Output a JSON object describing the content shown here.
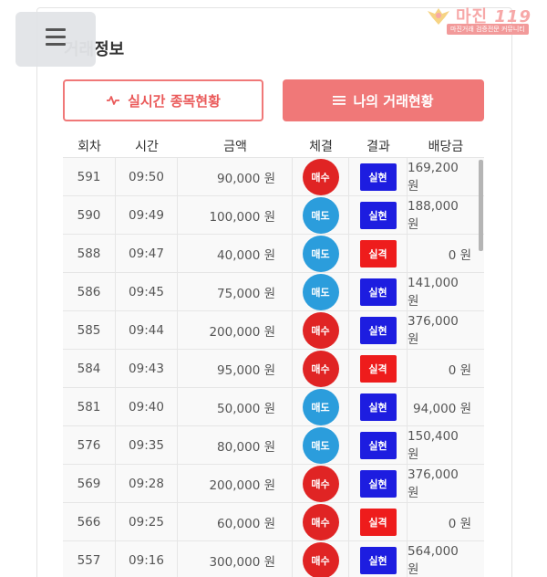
{
  "logo": {
    "brand": "마진",
    "brand_num": "119",
    "tagline": "마진거래 검증전문 커뮤니티"
  },
  "menu": {
    "icon": "hamburger-menu-icon"
  },
  "page": {
    "title_part1": "거래",
    "title_part2": "정보"
  },
  "tabs": {
    "live": {
      "label": "실시간 종목현황",
      "icon": "pulse-icon"
    },
    "mine": {
      "label": "나의 거래현황",
      "icon": "list-icon"
    }
  },
  "table": {
    "columns": [
      "회차",
      "시간",
      "금액",
      "체결",
      "결과",
      "배당금"
    ],
    "rows": [
      {
        "round": "591",
        "time": "09:50",
        "amount": "90,000 원",
        "trade": "매수",
        "trade_type": "buy",
        "result": "실현",
        "result_type": "win",
        "payout": "169,200 원"
      },
      {
        "round": "590",
        "time": "09:49",
        "amount": "100,000 원",
        "trade": "매도",
        "trade_type": "sell",
        "result": "실현",
        "result_type": "win",
        "payout": "188,000 원"
      },
      {
        "round": "588",
        "time": "09:47",
        "amount": "40,000 원",
        "trade": "매도",
        "trade_type": "sell",
        "result": "실격",
        "result_type": "lose",
        "payout": "0 원"
      },
      {
        "round": "586",
        "time": "09:45",
        "amount": "75,000 원",
        "trade": "매도",
        "trade_type": "sell",
        "result": "실현",
        "result_type": "win",
        "payout": "141,000 원"
      },
      {
        "round": "585",
        "time": "09:44",
        "amount": "200,000 원",
        "trade": "매수",
        "trade_type": "buy",
        "result": "실현",
        "result_type": "win",
        "payout": "376,000 원"
      },
      {
        "round": "584",
        "time": "09:43",
        "amount": "95,000 원",
        "trade": "매수",
        "trade_type": "buy",
        "result": "실격",
        "result_type": "lose",
        "payout": "0 원"
      },
      {
        "round": "581",
        "time": "09:40",
        "amount": "50,000 원",
        "trade": "매도",
        "trade_type": "sell",
        "result": "실현",
        "result_type": "win",
        "payout": "94,000 원"
      },
      {
        "round": "576",
        "time": "09:35",
        "amount": "80,000 원",
        "trade": "매도",
        "trade_type": "sell",
        "result": "실현",
        "result_type": "win",
        "payout": "150,400 원"
      },
      {
        "round": "569",
        "time": "09:28",
        "amount": "200,000 원",
        "trade": "매수",
        "trade_type": "buy",
        "result": "실현",
        "result_type": "win",
        "payout": "376,000 원"
      },
      {
        "round": "566",
        "time": "09:25",
        "amount": "60,000 원",
        "trade": "매수",
        "trade_type": "buy",
        "result": "실격",
        "result_type": "lose",
        "payout": "0 원"
      },
      {
        "round": "557",
        "time": "09:16",
        "amount": "300,000 원",
        "trade": "매수",
        "trade_type": "buy",
        "result": "실현",
        "result_type": "win",
        "payout": "564,000 원"
      }
    ]
  },
  "colors": {
    "accent": "#f07878",
    "buy": "#e02424",
    "sell": "#2b9ddc",
    "win": "#1d1de0",
    "lose": "#ee1c1c"
  }
}
